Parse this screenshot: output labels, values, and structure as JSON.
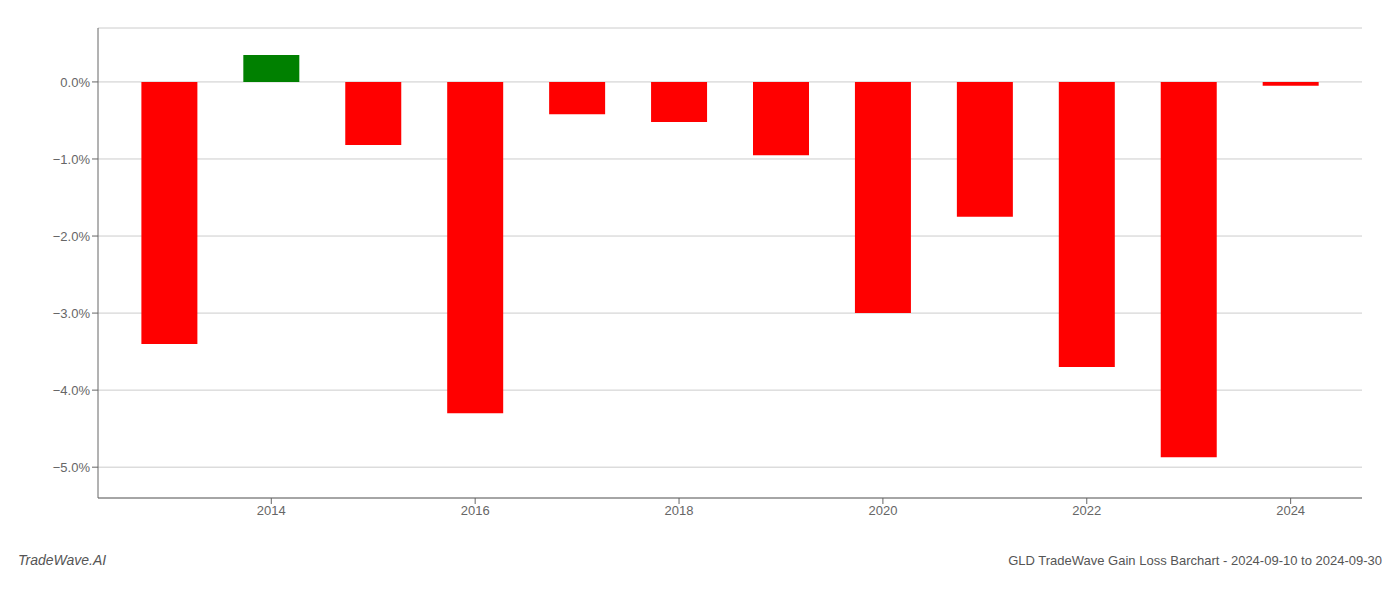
{
  "chart_data": {
    "type": "bar",
    "title": "GLD TradeWave Gain Loss Barchart - 2024-09-10 to 2024-09-30",
    "annotations": [
      {
        "text": "TradeWave.AI"
      }
    ],
    "x": [
      2013,
      2014,
      2015,
      2016,
      2017,
      2018,
      2019,
      2020,
      2021,
      2022,
      2023,
      2024
    ],
    "values": [
      -3.4,
      0.35,
      -0.82,
      -4.3,
      -0.42,
      -0.52,
      -0.95,
      -3.0,
      -1.75,
      -3.7,
      -4.87,
      -0.05
    ],
    "colors": [
      "#ff0000",
      "#008000",
      "#ff0000",
      "#ff0000",
      "#ff0000",
      "#ff0000",
      "#ff0000",
      "#ff0000",
      "#ff0000",
      "#ff0000",
      "#ff0000",
      "#ff0000"
    ],
    "xlim": [
      2012.3,
      2024.7
    ],
    "xticks": [
      2014,
      2016,
      2018,
      2020,
      2022,
      2024
    ],
    "ylim": [
      -5.4,
      0.7
    ],
    "yticks": [
      {
        "value": 0.0,
        "label": "0.0%"
      },
      {
        "value": -1.0,
        "label": "−1.0%"
      },
      {
        "value": -2.0,
        "label": "−2.0%"
      },
      {
        "value": -3.0,
        "label": "−3.0%"
      },
      {
        "value": -4.0,
        "label": "−4.0%"
      },
      {
        "value": -5.0,
        "label": "−5.0%"
      }
    ],
    "grid": true
  }
}
